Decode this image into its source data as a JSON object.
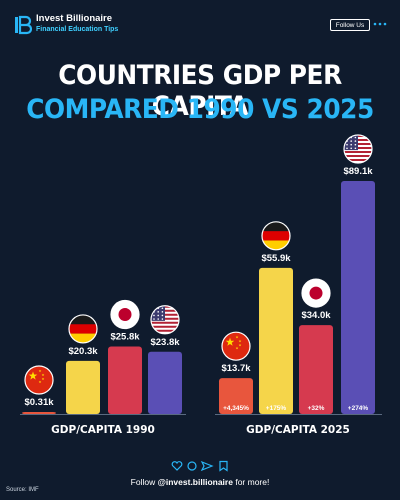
{
  "header": {
    "brand_name": "Invest Billionaire",
    "brand_subtitle": "Financial Education Tips",
    "follow_label": "Follow Us"
  },
  "title_line1": "COUNTRIES GDP PER CAPITA",
  "title_line2": "COMPARED 1990 VS 2025",
  "colors": {
    "background": "#0f1b2d",
    "china": "#e8563d",
    "germany": "#f5d54a",
    "japan": "#d63a4f",
    "usa": "#5a4fb5",
    "title_accent": "#29b6f6"
  },
  "chart_data": [
    {
      "type": "bar",
      "xlabel": "GDP/CAPITA 1990",
      "unit": "k USD",
      "categories": [
        "China",
        "Germany",
        "Japan",
        "United States"
      ],
      "values": [
        0.31,
        20.3,
        25.8,
        23.8
      ],
      "data_labels": [
        "$0.31k",
        "$20.3k",
        "$25.8k",
        "$23.8k"
      ],
      "ylim": [
        0,
        89.1
      ]
    },
    {
      "type": "bar",
      "xlabel": "GDP/CAPITA 2025",
      "unit": "k USD",
      "categories": [
        "China",
        "Germany",
        "Japan",
        "United States"
      ],
      "values": [
        13.7,
        55.9,
        34.0,
        89.1
      ],
      "data_labels": [
        "$13.7k",
        "$55.9k",
        "$34.0k",
        "$89.1k"
      ],
      "growth_labels": [
        "+4,345%",
        "+175%",
        "+32%",
        "+274%"
      ],
      "ylim": [
        0,
        89.1
      ]
    }
  ],
  "footer": {
    "prefix": "Follow ",
    "handle": "@invest.billionaire",
    "suffix": " for more!",
    "source": "Source: IMF"
  }
}
